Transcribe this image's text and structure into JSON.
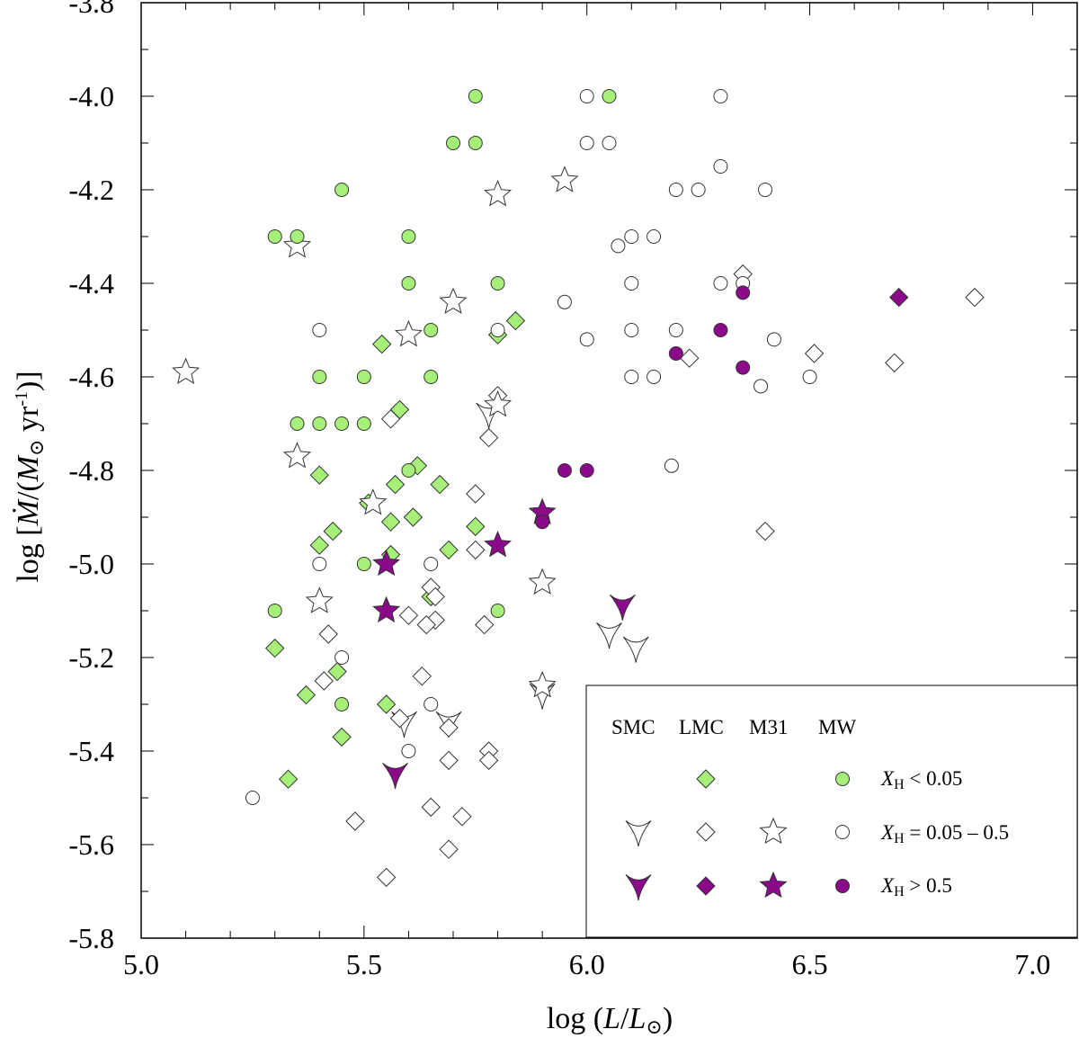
{
  "chart_data": {
    "type": "scatter",
    "xlabel": "log (L/L⊙)",
    "ylabel": "log [Ṁ/(M⊙ yr⁻¹)]",
    "xlim": [
      5.0,
      7.1
    ],
    "ylim": [
      -5.8,
      -3.8
    ],
    "x_ticks": [
      "5.0",
      "5.5",
      "6.0",
      "6.5",
      "7.0"
    ],
    "y_ticks": [
      "-3.8",
      "-4.0",
      "-4.2",
      "-4.4",
      "-4.6",
      "-4.8",
      "-5.0",
      "-5.2",
      "-5.4",
      "-5.6",
      "-5.8"
    ],
    "x_tick_values": [
      5.0,
      5.5,
      6.0,
      6.5,
      7.0
    ],
    "y_tick_values": [
      -3.8,
      -4.0,
      -4.2,
      -4.4,
      -4.6,
      -4.8,
      -5.0,
      -5.2,
      -5.4,
      -5.6,
      -5.8
    ],
    "legend": {
      "placement": "bottom-right",
      "galaxies": [
        "SMC",
        "LMC",
        "M31",
        "MW"
      ],
      "rows": [
        {
          "symbol": "X",
          "subscript": "H",
          "text": " < 0.05"
        },
        {
          "symbol": "X",
          "subscript": "H",
          "text": " = 0.05 – 0.5"
        },
        {
          "symbol": "X",
          "subscript": "H",
          "text": " > 0.5"
        }
      ]
    },
    "colors": {
      "green": "#a6f07a",
      "white": "#ffffff",
      "purple": "#8a0a8a"
    },
    "series": [
      {
        "galaxy": "SMC",
        "marker": "tri",
        "xh_class": "0.05-0.5",
        "fill": "white",
        "points": [
          [
            6.11,
            -5.18
          ],
          [
            6.05,
            -5.15
          ],
          [
            5.9,
            -5.28
          ],
          [
            5.59,
            -5.34
          ],
          [
            5.69,
            -5.34
          ],
          [
            5.78,
            -4.68
          ]
        ]
      },
      {
        "galaxy": "SMC",
        "marker": "tri",
        "xh_class": ">0.5",
        "fill": "purple",
        "points": [
          [
            6.08,
            -5.09
          ],
          [
            5.57,
            -5.45
          ]
        ]
      },
      {
        "galaxy": "LMC",
        "marker": "diamond",
        "xh_class": "<0.05",
        "fill": "green",
        "points": [
          [
            5.84,
            -4.48
          ],
          [
            5.8,
            -4.51
          ],
          [
            5.54,
            -4.53
          ],
          [
            5.58,
            -4.67
          ],
          [
            5.4,
            -4.81
          ],
          [
            5.57,
            -4.83
          ],
          [
            5.62,
            -4.79
          ],
          [
            5.67,
            -4.83
          ],
          [
            5.51,
            -4.87
          ],
          [
            5.56,
            -4.91
          ],
          [
            5.61,
            -4.9
          ],
          [
            5.75,
            -4.92
          ],
          [
            5.43,
            -4.93
          ],
          [
            5.4,
            -4.96
          ],
          [
            5.69,
            -4.97
          ],
          [
            5.56,
            -4.98
          ],
          [
            5.65,
            -5.07
          ],
          [
            5.3,
            -5.18
          ],
          [
            5.44,
            -5.23
          ],
          [
            5.37,
            -5.28
          ],
          [
            5.55,
            -5.3
          ],
          [
            5.45,
            -5.37
          ],
          [
            5.33,
            -5.46
          ]
        ]
      },
      {
        "galaxy": "LMC",
        "marker": "diamond",
        "xh_class": "0.05-0.5",
        "fill": "white",
        "points": [
          [
            6.35,
            -4.38
          ],
          [
            6.23,
            -4.56
          ],
          [
            6.51,
            -4.55
          ],
          [
            6.69,
            -4.57
          ],
          [
            6.87,
            -4.43
          ],
          [
            5.8,
            -4.64
          ],
          [
            5.56,
            -4.69
          ],
          [
            5.78,
            -4.73
          ],
          [
            5.75,
            -4.85
          ],
          [
            5.75,
            -4.97
          ],
          [
            6.4,
            -4.93
          ],
          [
            5.65,
            -5.05
          ],
          [
            5.66,
            -5.07
          ],
          [
            5.6,
            -5.11
          ],
          [
            5.66,
            -5.12
          ],
          [
            5.64,
            -5.13
          ],
          [
            5.77,
            -5.13
          ],
          [
            5.42,
            -5.15
          ],
          [
            5.63,
            -5.24
          ],
          [
            5.41,
            -5.25
          ],
          [
            5.58,
            -5.33
          ],
          [
            5.69,
            -5.35
          ],
          [
            5.78,
            -5.4
          ],
          [
            5.78,
            -5.42
          ],
          [
            5.69,
            -5.42
          ],
          [
            5.65,
            -5.52
          ],
          [
            5.72,
            -5.54
          ],
          [
            5.48,
            -5.55
          ],
          [
            5.69,
            -5.61
          ],
          [
            5.55,
            -5.67
          ]
        ]
      },
      {
        "galaxy": "LMC",
        "marker": "diamond",
        "xh_class": ">0.5",
        "fill": "purple",
        "points": [
          [
            6.7,
            -4.43
          ]
        ]
      },
      {
        "galaxy": "M31",
        "marker": "star",
        "xh_class": "0.05-0.5",
        "fill": "white",
        "points": [
          [
            5.95,
            -4.18
          ],
          [
            5.8,
            -4.21
          ],
          [
            5.35,
            -4.32
          ],
          [
            5.7,
            -4.44
          ],
          [
            5.6,
            -4.51
          ],
          [
            5.1,
            -4.59
          ],
          [
            5.8,
            -4.66
          ],
          [
            5.35,
            -4.77
          ],
          [
            5.52,
            -4.87
          ],
          [
            5.9,
            -5.04
          ],
          [
            5.4,
            -5.08
          ],
          [
            5.9,
            -5.26
          ]
        ]
      },
      {
        "galaxy": "M31",
        "marker": "star",
        "xh_class": ">0.5",
        "fill": "purple",
        "points": [
          [
            5.9,
            -4.89
          ],
          [
            5.8,
            -4.96
          ],
          [
            5.55,
            -5.0
          ],
          [
            5.55,
            -5.1
          ]
        ]
      },
      {
        "galaxy": "MW",
        "marker": "circle",
        "xh_class": "<0.05",
        "fill": "green",
        "points": [
          [
            5.75,
            -4.0
          ],
          [
            6.05,
            -4.0
          ],
          [
            5.7,
            -4.1
          ],
          [
            5.75,
            -4.1
          ],
          [
            5.45,
            -4.2
          ],
          [
            5.3,
            -4.3
          ],
          [
            5.35,
            -4.3
          ],
          [
            5.6,
            -4.3
          ],
          [
            5.6,
            -4.4
          ],
          [
            5.8,
            -4.4
          ],
          [
            5.65,
            -4.5
          ],
          [
            5.4,
            -4.6
          ],
          [
            5.5,
            -4.6
          ],
          [
            5.65,
            -4.6
          ],
          [
            5.35,
            -4.7
          ],
          [
            5.4,
            -4.7
          ],
          [
            5.45,
            -4.7
          ],
          [
            5.5,
            -4.7
          ],
          [
            5.6,
            -4.8
          ],
          [
            5.5,
            -5.0
          ],
          [
            5.3,
            -5.1
          ],
          [
            5.8,
            -5.1
          ],
          [
            5.45,
            -5.3
          ]
        ]
      },
      {
        "galaxy": "MW",
        "marker": "circle",
        "xh_class": "0.05-0.5",
        "fill": "white",
        "points": [
          [
            6.0,
            -4.0
          ],
          [
            6.3,
            -4.0
          ],
          [
            6.0,
            -4.1
          ],
          [
            6.05,
            -4.1
          ],
          [
            6.3,
            -4.15
          ],
          [
            6.2,
            -4.2
          ],
          [
            6.25,
            -4.2
          ],
          [
            6.4,
            -4.2
          ],
          [
            6.07,
            -4.32
          ],
          [
            6.1,
            -4.3
          ],
          [
            6.15,
            -4.3
          ],
          [
            6.1,
            -4.4
          ],
          [
            6.3,
            -4.4
          ],
          [
            6.35,
            -4.4
          ],
          [
            5.95,
            -4.44
          ],
          [
            5.4,
            -4.5
          ],
          [
            5.8,
            -4.5
          ],
          [
            6.1,
            -4.5
          ],
          [
            6.2,
            -4.5
          ],
          [
            6.0,
            -4.52
          ],
          [
            6.42,
            -4.52
          ],
          [
            6.1,
            -4.6
          ],
          [
            6.15,
            -4.6
          ],
          [
            6.5,
            -4.6
          ],
          [
            6.39,
            -4.62
          ],
          [
            6.19,
            -4.79
          ],
          [
            5.4,
            -5.0
          ],
          [
            5.65,
            -5.0
          ],
          [
            5.45,
            -5.2
          ],
          [
            5.65,
            -5.3
          ],
          [
            5.6,
            -5.4
          ],
          [
            5.25,
            -5.5
          ]
        ]
      },
      {
        "galaxy": "MW",
        "marker": "circle",
        "xh_class": ">0.5",
        "fill": "purple",
        "points": [
          [
            6.35,
            -4.42
          ],
          [
            6.3,
            -4.5
          ],
          [
            6.2,
            -4.55
          ],
          [
            6.35,
            -4.58
          ],
          [
            5.95,
            -4.8
          ],
          [
            6.0,
            -4.8
          ],
          [
            5.9,
            -4.91
          ]
        ]
      }
    ]
  }
}
